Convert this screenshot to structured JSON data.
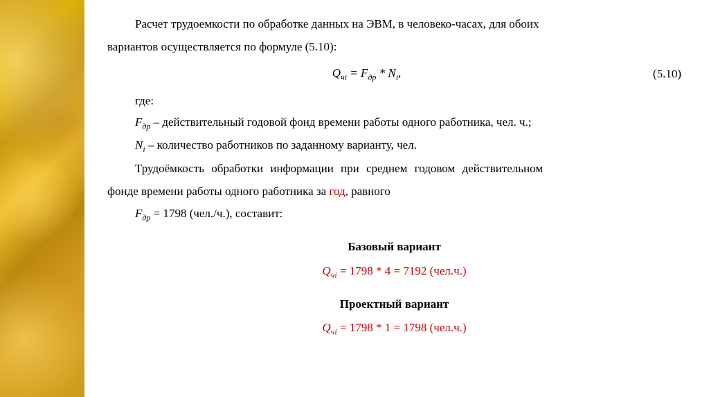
{
  "intro": {
    "line1": "Расчет трудоемкости по обработке данных на ЭВМ, в человеко-часах, для обоих",
    "line2": "вариантов осуществляется по формуле (5.10):"
  },
  "formula": {
    "text": "Qчi = Fдр * Ni,",
    "number": "(5.10)"
  },
  "where": "где:",
  "def1": {
    "sym": "Fдр",
    "text": " – действительный годовой фонд времени работы одного работника, чел. ч.;"
  },
  "def2": {
    "sym": "Ni",
    "text": " – количество работников по заданному варианту, чел."
  },
  "para2": {
    "line1": "Трудоёмкость обработки информации при среднем годовом действительном",
    "line2a": "фонде времени работы одного работника за ",
    "line2_red": "год",
    "line2b": ", равного"
  },
  "fdr": {
    "sym": "Fдр",
    "val": " = 1798 (чел./ч.), составит:"
  },
  "base": {
    "title": "Базовый вариант",
    "formula": "Qчi = 1798 * 4 = 7192 (чел.ч.)"
  },
  "project": {
    "title": "Проектный вариант",
    "formula": "Qчi = 1798 * 1 = 1798 (чел.ч.)"
  },
  "colors": {
    "text": "#000000",
    "highlight": "#c00000",
    "background": "#ffffff"
  }
}
